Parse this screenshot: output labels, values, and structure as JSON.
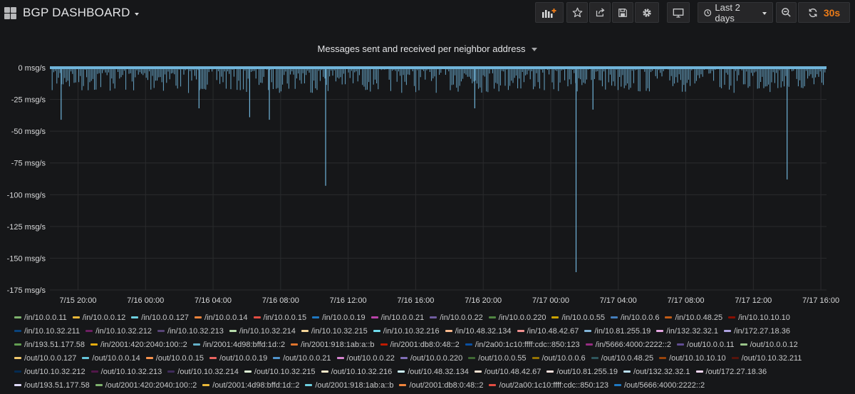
{
  "header": {
    "title": "BGP DASHBOARD",
    "time_range": "Last 2 days",
    "refresh": "30s"
  },
  "icons": {
    "dashboard": "grid-icon",
    "add_panel": "add-panel-icon",
    "star": "star-icon",
    "share": "share-icon",
    "save": "save-icon",
    "settings": "gear-icon",
    "tv_mode": "monitor-icon",
    "clock": "clock-icon",
    "zoom_out": "zoom-out-icon",
    "refresh": "refresh-icon"
  },
  "colors": {
    "background": "#161719",
    "grid": "#2a2b2d",
    "series": "#70b4d9",
    "refresh_accent": "#eb7b18"
  },
  "panel": {
    "title": "Messages sent and received per neighbor address"
  },
  "chart_data": {
    "type": "line",
    "title": "Messages sent and received per neighbor address",
    "xlabel": "",
    "ylabel": "",
    "unit": "msg/s",
    "ylim": [
      -175,
      0
    ],
    "yticks": [
      "0 msg/s",
      "-25 msg/s",
      "-50 msg/s",
      "-75 msg/s",
      "-100 msg/s",
      "-125 msg/s",
      "-150 msg/s",
      "-175 msg/s"
    ],
    "yvalues": [
      0,
      -25,
      -50,
      -75,
      -100,
      -125,
      -150,
      -175
    ],
    "xlim": [
      "7/15 18:20",
      "7/17 16:20"
    ],
    "xticks": [
      "7/15 20:00",
      "7/16 00:00",
      "7/16 04:00",
      "7/16 08:00",
      "7/16 12:00",
      "7/16 16:00",
      "7/16 20:00",
      "7/17 00:00",
      "7/17 04:00",
      "7/17 08:00",
      "7/17 12:00",
      "7/17 16:00"
    ],
    "xtick_hours": [
      20,
      24,
      28,
      32,
      36,
      40,
      44,
      48,
      52,
      56,
      60,
      64
    ],
    "grid": true,
    "legend_position": "bottom",
    "typical_range": [
      -20,
      -1
    ],
    "spikes": [
      {
        "x": "7/15 19:00",
        "y": -41
      },
      {
        "x": "7/16 03:10",
        "y": -32
      },
      {
        "x": "7/16 06:10",
        "y": -39
      },
      {
        "x": "7/16 07:20",
        "y": -41
      },
      {
        "x": "7/16 10:40",
        "y": -93
      },
      {
        "x": "7/16 19:30",
        "y": -32
      },
      {
        "x": "7/17 01:30",
        "y": -161
      },
      {
        "x": "7/17 02:30",
        "y": -33
      },
      {
        "x": "7/17 14:00",
        "y": -88
      }
    ],
    "series": [
      {
        "name": "/in/10.0.0.11",
        "color": "#7eb26d"
      },
      {
        "name": "/in/10.0.0.12",
        "color": "#eab839"
      },
      {
        "name": "/in/10.0.0.127",
        "color": "#6ed0e0"
      },
      {
        "name": "/in/10.0.0.14",
        "color": "#ef843c"
      },
      {
        "name": "/in/10.0.0.15",
        "color": "#e24d42"
      },
      {
        "name": "/in/10.0.0.19",
        "color": "#1f78c1"
      },
      {
        "name": "/in/10.0.0.21",
        "color": "#ba43a9"
      },
      {
        "name": "/in/10.0.0.22",
        "color": "#705da0"
      },
      {
        "name": "/in/10.0.0.220",
        "color": "#508642"
      },
      {
        "name": "/in/10.0.0.55",
        "color": "#cca300"
      },
      {
        "name": "/in/10.0.0.6",
        "color": "#447ebc"
      },
      {
        "name": "/in/10.0.48.25",
        "color": "#c15c17"
      },
      {
        "name": "/in/10.10.10.10",
        "color": "#890f02"
      },
      {
        "name": "/in/10.10.32.211",
        "color": "#0a437c"
      },
      {
        "name": "/in/10.10.32.212",
        "color": "#6d1f62"
      },
      {
        "name": "/in/10.10.32.213",
        "color": "#584477"
      },
      {
        "name": "/in/10.10.32.214",
        "color": "#b7dbab"
      },
      {
        "name": "/in/10.10.32.215",
        "color": "#f4d598"
      },
      {
        "name": "/in/10.10.32.216",
        "color": "#70dbed"
      },
      {
        "name": "/in/10.48.32.134",
        "color": "#f9ba8f"
      },
      {
        "name": "/in/10.48.42.67",
        "color": "#f29191"
      },
      {
        "name": "/in/10.81.255.19",
        "color": "#82b5d8"
      },
      {
        "name": "/in/132.32.32.1",
        "color": "#e5a8e2"
      },
      {
        "name": "/in/172.27.18.36",
        "color": "#aea2e0"
      },
      {
        "name": "/in/193.51.177.58",
        "color": "#629e51"
      },
      {
        "name": "/in/2001:420:2040:100::2",
        "color": "#e5ac0e"
      },
      {
        "name": "/in/2001:4d98:bffd:1d::2",
        "color": "#64b0c8"
      },
      {
        "name": "/in/2001:918:1ab:a::b",
        "color": "#e0752d"
      },
      {
        "name": "/in/2001:db8:0:48::2",
        "color": "#bf1b00"
      },
      {
        "name": "/in/2a00:1c10:ffff:cdc::850:123",
        "color": "#0a50a1"
      },
      {
        "name": "/in/5666:4000:2222::2",
        "color": "#962d82"
      },
      {
        "name": "/out/10.0.0.11",
        "color": "#614d93"
      },
      {
        "name": "/out/10.0.0.12",
        "color": "#9ac48a"
      },
      {
        "name": "/out/10.0.0.127",
        "color": "#f2c96d"
      },
      {
        "name": "/out/10.0.0.14",
        "color": "#65c5db"
      },
      {
        "name": "/out/10.0.0.15",
        "color": "#f9934e"
      },
      {
        "name": "/out/10.0.0.19",
        "color": "#ea6460"
      },
      {
        "name": "/out/10.0.0.21",
        "color": "#5195ce"
      },
      {
        "name": "/out/10.0.0.22",
        "color": "#d683ce"
      },
      {
        "name": "/out/10.0.0.220",
        "color": "#806eb7"
      },
      {
        "name": "/out/10.0.0.55",
        "color": "#3f6833"
      },
      {
        "name": "/out/10.0.0.6",
        "color": "#967302"
      },
      {
        "name": "/out/10.0.48.25",
        "color": "#2f575e"
      },
      {
        "name": "/out/10.10.10.10",
        "color": "#99440a"
      },
      {
        "name": "/out/10.10.32.211",
        "color": "#58140c"
      },
      {
        "name": "/out/10.10.32.212",
        "color": "#052b51"
      },
      {
        "name": "/out/10.10.32.213",
        "color": "#511749"
      },
      {
        "name": "/out/10.10.32.214",
        "color": "#3f2b5b"
      },
      {
        "name": "/out/10.10.32.215",
        "color": "#e0f9d7"
      },
      {
        "name": "/out/10.10.32.216",
        "color": "#fceaca"
      },
      {
        "name": "/out/10.48.32.134",
        "color": "#cffaff"
      },
      {
        "name": "/out/10.48.42.67",
        "color": "#f9e2d2"
      },
      {
        "name": "/out/10.81.255.19",
        "color": "#fce2de"
      },
      {
        "name": "/out/132.32.32.1",
        "color": "#badff4"
      },
      {
        "name": "/out/172.27.18.36",
        "color": "#f9d9f9"
      },
      {
        "name": "/out/193.51.177.58",
        "color": "#dedaf7"
      },
      {
        "name": "/out/2001:420:2040:100::2",
        "color": "#7eb26d"
      },
      {
        "name": "/out/2001:4d98:bffd:1d::2",
        "color": "#eab839"
      },
      {
        "name": "/out/2001:918:1ab:a::b",
        "color": "#6ed0e0"
      },
      {
        "name": "/out/2001:db8:0:48::2",
        "color": "#ef843c"
      },
      {
        "name": "/out/2a00:1c10:ffff:cdc::850:123",
        "color": "#e24d42"
      },
      {
        "name": "/out/5666:4000:2222::2",
        "color": "#1f78c1"
      }
    ]
  }
}
